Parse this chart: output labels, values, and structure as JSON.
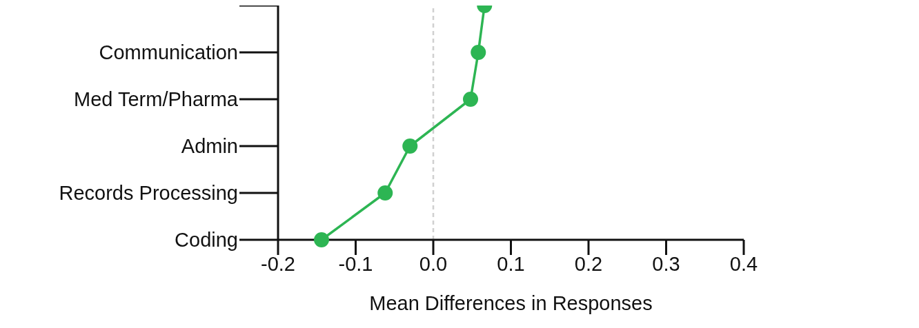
{
  "chart_data": {
    "type": "line",
    "orientation": "horizontal",
    "xlabel": "Mean Differences in Responses",
    "categories": [
      null,
      "Communication",
      "Med Term/Pharma",
      "Admin",
      "Records Processing",
      "Coding"
    ],
    "values": [
      0.066,
      0.058,
      0.048,
      -0.03,
      -0.062,
      -0.144
    ],
    "color": "#2db553",
    "marker": "circle",
    "line_style": "solid",
    "xlim": [
      -0.2,
      0.4
    ],
    "xticks": [
      {
        "value": -0.2,
        "label": "-0.2"
      },
      {
        "value": -0.1,
        "label": "-0.1"
      },
      {
        "value": 0,
        "label": "0.0"
      },
      {
        "value": 0.1,
        "label": "0.1"
      },
      {
        "value": 0.2,
        "label": "0.2"
      },
      {
        "value": 0.3,
        "label": "0.3"
      },
      {
        "value": 0.4,
        "label": "0.4"
      }
    ],
    "ref_lines": [
      {
        "axis": "x",
        "value": 0,
        "color": "#d0d0d0",
        "line_style": "dashed"
      }
    ],
    "grid": false,
    "legend": false
  }
}
